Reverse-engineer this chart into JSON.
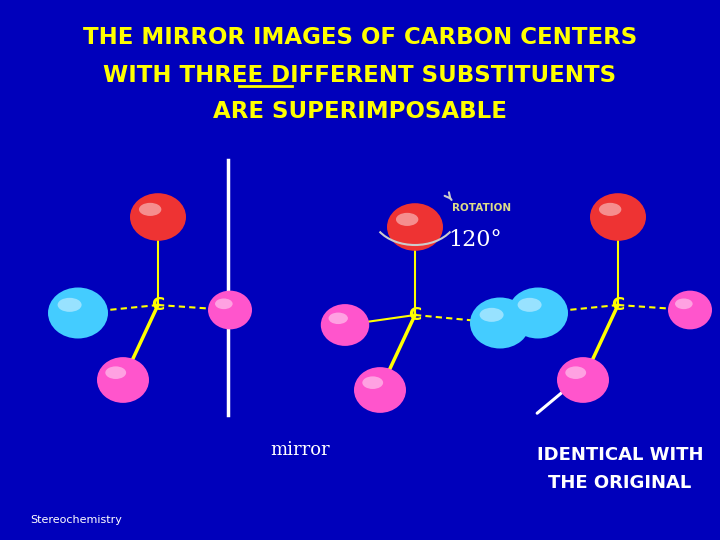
{
  "bg_color": "#0000bb",
  "title_lines": [
    "THE MIRROR IMAGES OF CARBON CENTERS",
    "WITH THREE DIFFERENT SUBSTITUENTS",
    "ARE SUPERIMPOSABLE"
  ],
  "title_color": "#ffff00",
  "title_fontsize": 16.5,
  "mirror_label": "mirror",
  "mirror_label_color": "#ffffff",
  "rotation_label": "ROTATION",
  "rotation_angle": "120°",
  "identical_label": "IDENTICAL WITH\nTHE ORIGINAL",
  "identical_color": "#ffffff",
  "stereo_label": "Stereochemistry",
  "stereo_color": "#ffffff",
  "carbon_color": "#ffff00",
  "bond_color": "#ffff00",
  "red_sphere": "#ee3333",
  "cyan_sphere": "#44ccff",
  "pink_sphere": "#ff55cc",
  "equiv_color": "#ffffff"
}
